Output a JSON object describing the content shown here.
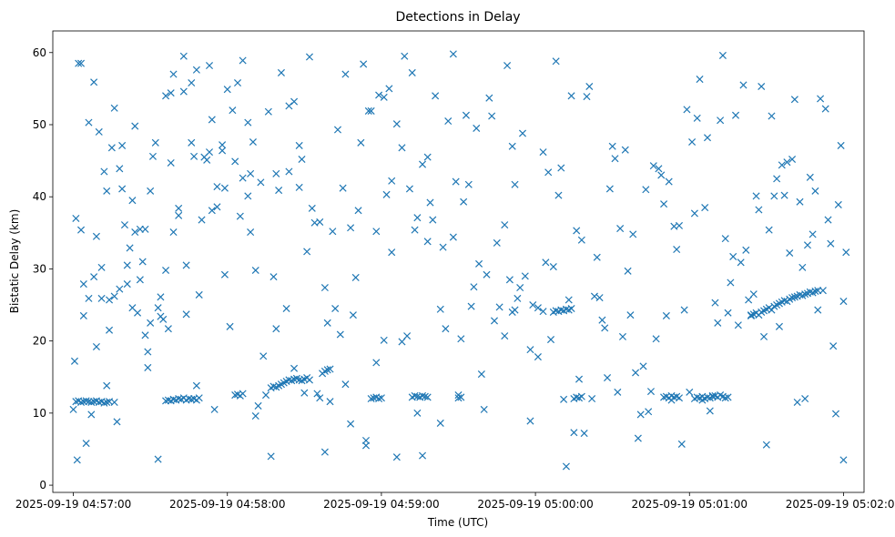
{
  "chart_data": {
    "type": "scatter",
    "title": "Detections in Delay",
    "xlabel": "Time (UTC)",
    "ylabel": "Bistatic Delay (km)",
    "marker": "x",
    "color": "#1f77b4",
    "x_unit": "seconds since 2025-09-19 04:57:00",
    "xlim": [
      -8,
      308
    ],
    "ylim": [
      -1,
      63
    ],
    "x_ticks": [
      {
        "value": 0,
        "label": "2025-09-19 04:57:00"
      },
      {
        "value": 60,
        "label": "2025-09-19 04:58:00"
      },
      {
        "value": 120,
        "label": "2025-09-19 04:59:00"
      },
      {
        "value": 180,
        "label": "2025-09-19 05:00:00"
      },
      {
        "value": 240,
        "label": "2025-09-19 05:01:00"
      },
      {
        "value": 300,
        "label": "2025-09-19 05:02:00"
      }
    ],
    "y_ticks": [
      {
        "value": 0,
        "label": "0"
      },
      {
        "value": 10,
        "label": "10"
      },
      {
        "value": 20,
        "label": "20"
      },
      {
        "value": 30,
        "label": "30"
      },
      {
        "value": 40,
        "label": "40"
      },
      {
        "value": 50,
        "label": "50"
      },
      {
        "value": 60,
        "label": "60"
      }
    ],
    "series": [
      {
        "name": "Detections",
        "x": [
          1,
          2,
          3,
          4,
          5,
          6,
          7,
          8,
          9,
          10,
          11,
          12,
          13,
          14,
          16,
          36,
          37,
          38,
          39,
          40,
          41,
          42,
          43,
          44,
          45,
          46,
          47,
          48,
          49,
          63,
          64,
          65,
          66,
          77,
          78,
          79,
          80,
          81,
          82,
          83,
          84,
          85,
          86,
          87,
          88,
          89,
          90,
          91,
          92,
          97,
          98,
          99,
          100,
          116,
          117,
          118,
          119,
          120,
          132,
          133,
          134,
          135,
          136,
          137,
          138,
          150,
          151,
          171,
          172,
          195,
          196,
          197,
          198,
          230,
          231,
          232,
          233,
          234,
          235,
          236,
          242,
          243,
          244,
          245,
          246,
          247,
          248,
          249,
          250,
          251,
          252,
          253,
          254,
          255,
          264,
          265,
          266,
          267,
          268,
          269,
          270,
          271,
          272,
          273,
          274,
          275,
          276,
          277,
          278,
          279,
          280,
          281,
          282,
          283,
          284,
          285,
          286,
          287,
          288,
          289,
          290,
          187,
          188,
          189,
          190,
          191,
          192,
          193,
          194,
          0,
          0.5,
          1,
          1.5,
          3,
          6,
          10,
          16,
          15,
          12,
          18,
          22,
          26,
          27,
          28,
          30,
          32,
          20,
          13,
          4,
          5,
          7,
          9,
          11,
          24,
          21,
          25,
          33,
          35,
          34,
          41,
          44,
          43,
          50,
          53,
          52,
          55,
          56,
          58,
          60,
          62,
          66,
          70,
          69,
          71,
          68,
          65,
          59,
          54,
          48,
          47,
          46,
          39,
          38,
          37,
          36,
          30,
          29,
          23,
          19,
          17,
          8,
          14,
          72,
          75,
          77,
          79,
          80,
          84,
          86,
          88,
          90,
          92,
          95,
          96,
          98,
          100,
          102,
          105,
          106,
          108,
          110,
          112,
          114,
          115,
          118,
          121,
          122,
          124,
          126,
          128,
          130,
          132,
          134,
          136,
          138,
          140,
          143,
          145,
          148,
          150,
          152,
          155,
          157,
          160,
          162,
          165,
          168,
          170,
          172,
          175,
          178,
          181,
          183,
          185,
          187,
          190,
          192,
          195,
          197,
          200,
          202,
          205,
          207,
          210,
          212,
          215,
          217,
          220,
          222,
          225,
          227,
          230,
          232,
          235,
          237,
          240,
          242,
          245,
          247,
          250,
          252,
          255,
          257,
          260,
          262,
          265,
          267,
          270,
          272,
          275,
          277,
          280,
          282,
          285,
          287,
          290,
          292,
          295,
          297,
          300,
          301,
          2,
          6,
          11,
          16,
          21,
          26,
          31,
          36,
          41,
          46,
          51,
          56,
          61,
          66,
          71,
          76,
          81,
          86,
          91,
          96,
          101,
          106,
          111,
          116,
          121,
          126,
          131,
          136,
          141,
          146,
          151,
          156,
          161,
          166,
          171,
          176,
          181,
          186,
          191,
          196,
          201,
          206,
          211,
          216,
          221,
          226,
          231,
          236,
          241,
          246,
          251,
          256,
          261,
          266,
          271,
          276,
          281,
          286,
          291,
          296,
          300,
          3,
          8,
          13,
          18,
          23,
          28,
          33,
          38,
          43,
          48,
          53,
          58,
          63,
          68,
          73,
          78,
          83,
          88,
          93,
          98,
          103,
          108,
          113,
          118,
          123,
          128,
          133,
          138,
          143,
          148,
          153,
          158,
          163,
          168,
          173,
          178,
          183,
          188,
          193,
          198,
          203,
          208,
          213,
          218,
          223,
          228,
          233,
          238,
          243,
          248,
          253,
          258,
          263,
          268,
          273,
          278,
          283,
          288,
          293,
          298,
          4,
          9,
          14,
          19,
          24,
          29,
          34,
          39,
          44,
          49,
          54,
          59,
          64,
          69,
          74,
          79,
          84,
          89,
          94,
          99,
          104,
          109,
          114,
          119,
          124,
          129,
          134,
          139,
          144,
          149,
          154,
          159,
          164,
          169,
          174,
          179,
          184,
          189,
          194,
          199,
          204,
          209,
          214,
          219,
          224,
          229,
          234,
          239,
          244,
          249,
          254,
          259,
          264,
          269,
          274,
          279,
          284,
          289,
          294,
          299
        ],
        "y": [
          11.6,
          11.7,
          11.5,
          11.6,
          11.7,
          11.6,
          11.5,
          11.6,
          11.7,
          11.5,
          11.6,
          11.4,
          11.5,
          11.6,
          11.5,
          11.7,
          11.8,
          11.7,
          11.9,
          11.8,
          12.0,
          11.9,
          12.1,
          11.8,
          12.0,
          11.9,
          12.0,
          11.8,
          12.1,
          12.5,
          12.6,
          12.4,
          12.7,
          13.5,
          13.7,
          13.6,
          13.8,
          14.0,
          14.2,
          14.4,
          14.6,
          14.5,
          14.7,
          14.8,
          14.6,
          14.5,
          14.7,
          14.9,
          14.6,
          15.5,
          15.8,
          16.0,
          16.1,
          12.0,
          12.1,
          12.2,
          12.0,
          12.1,
          12.2,
          12.4,
          12.3,
          12.2,
          12.4,
          12.3,
          12.2,
          12.1,
          12.2,
          24.0,
          24.3,
          12.0,
          12.2,
          12.1,
          12.3,
          12.2,
          12.3,
          12.1,
          12.4,
          12.2,
          12.3,
          12.1,
          12.0,
          12.2,
          12.1,
          12.3,
          12.0,
          12.2,
          12.1,
          12.3,
          12.4,
          12.2,
          12.5,
          12.3,
          12.1,
          12.2,
          23.5,
          23.7,
          23.9,
          23.6,
          24.0,
          24.2,
          24.4,
          24.6,
          24.3,
          24.8,
          25.0,
          25.2,
          25.4,
          25.6,
          25.5,
          25.8,
          26.0,
          26.1,
          26.2,
          26.4,
          26.3,
          26.5,
          26.6,
          26.8,
          26.7,
          26.9,
          27.0,
          24.0,
          24.2,
          24.1,
          24.3,
          24.2,
          24.4,
          24.3,
          24.5,
          10.5,
          17.2,
          37.0,
          3.5,
          58.5,
          50.3,
          49.0,
          52.3,
          46.8,
          43.5,
          27.2,
          32.9,
          28.5,
          31.0,
          35.5,
          40.8,
          47.5,
          36.1,
          13.8,
          23.5,
          5.8,
          9.8,
          19.2,
          25.9,
          49.8,
          30.5,
          23.9,
          24.6,
          23.0,
          26.1,
          37.4,
          30.5,
          59.5,
          36.8,
          58.2,
          45.1,
          10.5,
          38.6,
          47.2,
          54.9,
          52.0,
          58.9,
          47.6,
          43.2,
          29.8,
          40.1,
          37.3,
          41.2,
          50.7,
          13.8,
          45.6,
          55.8,
          57.0,
          44.7,
          21.7,
          29.8,
          22.5,
          18.5,
          24.6,
          41.1,
          8.8,
          28.9,
          21.5,
          11.0,
          12.5,
          4.0,
          21.7,
          40.9,
          43.5,
          16.2,
          41.3,
          12.8,
          59.4,
          12.7,
          36.5,
          27.4,
          11.6,
          24.5,
          41.2,
          14.0,
          8.5,
          28.8,
          47.5,
          6.2,
          51.9,
          35.2,
          20.1,
          40.3,
          42.2,
          3.9,
          46.8,
          20.7,
          57.2,
          10.0,
          44.5,
          33.8,
          36.8,
          8.6,
          21.7,
          59.8,
          12.5,
          39.3,
          24.8,
          49.5,
          10.5,
          53.7,
          33.6,
          36.1,
          28.5,
          41.7,
          48.8,
          8.9,
          17.8,
          24.1,
          43.4,
          30.3,
          44.0,
          2.6,
          7.3,
          14.7,
          53.9,
          12.0,
          26.0,
          21.8,
          47.0,
          12.9,
          46.5,
          23.6,
          6.5,
          16.5,
          13.0,
          20.3,
          39.0,
          42.1,
          32.7,
          5.7,
          12.9,
          37.7,
          11.8,
          48.2,
          25.3,
          50.6,
          23.9,
          31.7,
          30.9,
          32.6,
          26.5,
          38.2,
          5.6,
          51.2,
          22.0,
          40.2,
          45.2,
          11.5,
          12.0,
          42.7,
          24.3,
          27.0,
          33.5,
          9.9,
          3.5,
          32.3,
          58.5,
          25.9,
          30.2,
          26.2,
          27.9,
          35.5,
          45.6,
          54.0,
          38.4,
          47.5,
          45.5,
          41.4,
          22.0,
          42.6,
          9.6,
          51.8,
          57.2,
          53.2,
          32.4,
          12.1,
          35.2,
          57.0,
          38.1,
          51.9,
          53.8,
          50.1,
          41.1,
          4.1,
          54.0,
          50.5,
          20.3,
          27.5,
          29.2,
          24.7,
          47.0,
          29.0,
          24.6,
          20.2,
          11.9,
          35.3,
          55.3,
          22.9,
          45.3,
          29.7,
          9.8,
          44.3,
          23.5,
          36.0,
          47.6,
          38.5,
          22.5,
          28.1,
          55.5,
          40.1,
          35.4,
          44.4,
          53.5,
          33.3,
          53.6,
          19.3,
          25.5,
          35.4,
          55.9,
          40.8,
          43.9,
          39.5,
          20.8,
          3.6,
          54.4,
          54.6,
          57.6,
          46.2,
          46.4,
          44.9,
          50.3,
          42.0,
          28.9,
          24.5,
          47.1,
          38.4,
          4.6,
          49.3,
          35.7,
          58.4,
          17.0,
          55.0,
          19.9,
          35.4,
          45.5,
          24.4,
          34.4,
          51.3,
          30.7,
          51.2,
          20.7,
          25.9,
          18.8,
          46.2,
          58.8,
          25.7,
          34.0,
          26.2,
          14.9,
          35.6,
          34.8,
          41.0,
          43.9,
          11.8,
          24.3,
          50.9,
          10.3,
          59.6,
          51.3,
          25.7,
          55.3,
          40.1,
          44.8,
          39.3,
          34.8,
          52.2,
          38.9,
          27.9,
          34.5,
          25.7,
          47.1,
          35.1,
          16.3,
          23.4,
          35.1,
          23.7,
          26.4,
          38.1,
          29.2,
          55.8,
          35.1,
          17.9,
          43.2,
          52.6,
          45.2,
          36.4,
          22.5,
          20.9,
          23.6,
          5.5,
          54.1,
          32.3,
          59.5,
          37.1,
          39.2,
          33.0,
          42.1,
          41.7,
          15.4,
          22.8,
          58.2,
          27.4,
          25.0,
          30.9,
          40.2,
          54.0,
          7.2,
          31.6,
          41.1,
          20.6,
          15.6,
          10.2,
          43.0,
          35.9,
          52.1,
          56.3,
          12.4,
          34.2,
          22.2,
          23.6,
          20.6,
          42.5,
          32.2,
          30.2,
          40.8,
          36.8,
          47.1
        ]
      }
    ]
  }
}
